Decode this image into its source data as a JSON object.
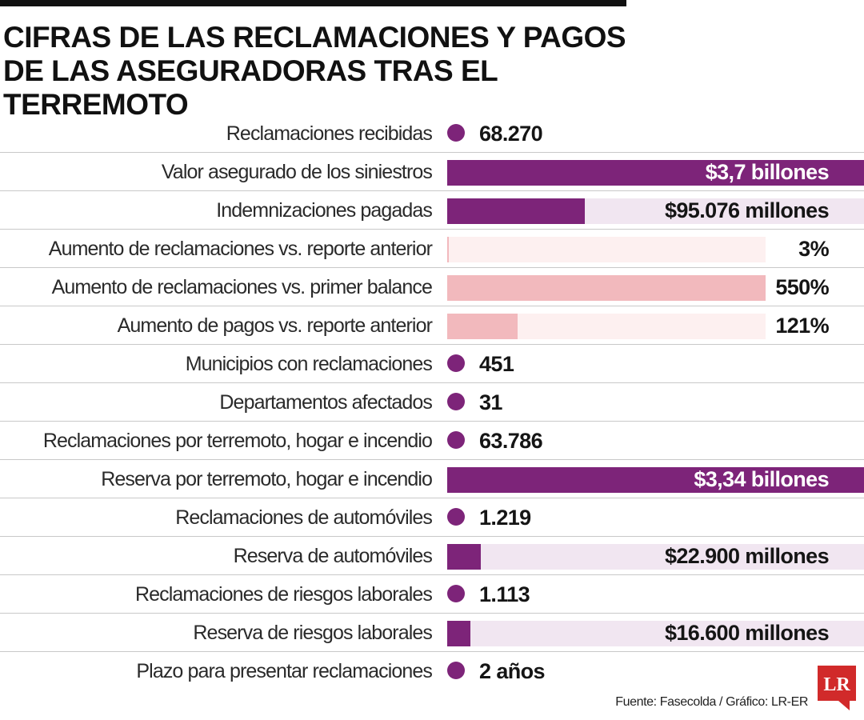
{
  "title": "CIFRAS DE LAS RECLAMACIONES Y PAGOS DE LAS ASEGURADORAS TRAS EL TERREMOTO",
  "source": "Fuente: Fasecolda / Gráfico: LR-ER",
  "logo_text": "LR",
  "colors": {
    "purple": "#7d2479",
    "purple_light": "#f1e6f1",
    "pink": "#f2b9bd",
    "pink_light": "#fdf0f0"
  },
  "chart_data": {
    "type": "bar",
    "title": "CIFRAS DE LAS RECLAMACIONES Y PAGOS DE LAS ASEGURADORAS TRAS EL TERREMOTO",
    "rows": [
      {
        "label": "Reclamaciones recibidas",
        "kind": "dot",
        "display": "68.270",
        "value": 68270
      },
      {
        "label": "Valor asegurado de los siniestros",
        "kind": "bar",
        "color": "purple",
        "display": "$3,7 billones",
        "value": 3700000,
        "unit": "millones",
        "fraction": 1.0
      },
      {
        "label": "Indemnizaciones pagadas",
        "kind": "bar",
        "color": "purple",
        "display": "$95.076 millones",
        "value": 95076,
        "unit": "millones",
        "fraction": 0.33
      },
      {
        "label": "Aumento de reclamaciones vs. reporte anterior",
        "kind": "bar",
        "color": "pink",
        "display": "3%",
        "value": 3,
        "unit": "%",
        "fraction": 0.005
      },
      {
        "label": "Aumento de reclamaciones vs. primer balance",
        "kind": "bar",
        "color": "pink",
        "display": "550%",
        "value": 550,
        "unit": "%",
        "fraction": 1.0
      },
      {
        "label": "Aumento de pagos vs. reporte anterior",
        "kind": "bar",
        "color": "pink",
        "display": "121%",
        "value": 121,
        "unit": "%",
        "fraction": 0.22
      },
      {
        "label": "Municipios con reclamaciones",
        "kind": "dot",
        "display": "451",
        "value": 451
      },
      {
        "label": "Departamentos afectados",
        "kind": "dot",
        "display": "31",
        "value": 31
      },
      {
        "label": "Reclamaciones por terremoto, hogar e incendio",
        "kind": "dot",
        "display": "63.786",
        "value": 63786
      },
      {
        "label": "Reserva por terremoto, hogar e incendio",
        "kind": "bar",
        "color": "purple",
        "display": "$3,34 billones",
        "value": 3340000,
        "unit": "millones",
        "fraction": 1.0
      },
      {
        "label": "Reclamaciones de automóviles",
        "kind": "dot",
        "display": "1.219",
        "value": 1219
      },
      {
        "label": "Reserva de automóviles",
        "kind": "bar",
        "color": "purple",
        "display": "$22.900 millones",
        "value": 22900,
        "unit": "millones",
        "fraction": 0.08
      },
      {
        "label": "Reclamaciones de riesgos laborales",
        "kind": "dot",
        "display": "1.113",
        "value": 1113
      },
      {
        "label": "Reserva de riesgos laborales",
        "kind": "bar",
        "color": "purple",
        "display": "$16.600 millones",
        "value": 16600,
        "unit": "millones",
        "fraction": 0.055
      },
      {
        "label": "Plazo para presentar reclamaciones",
        "kind": "dot",
        "display": "2 años",
        "value": 2,
        "unit": "años"
      }
    ]
  }
}
